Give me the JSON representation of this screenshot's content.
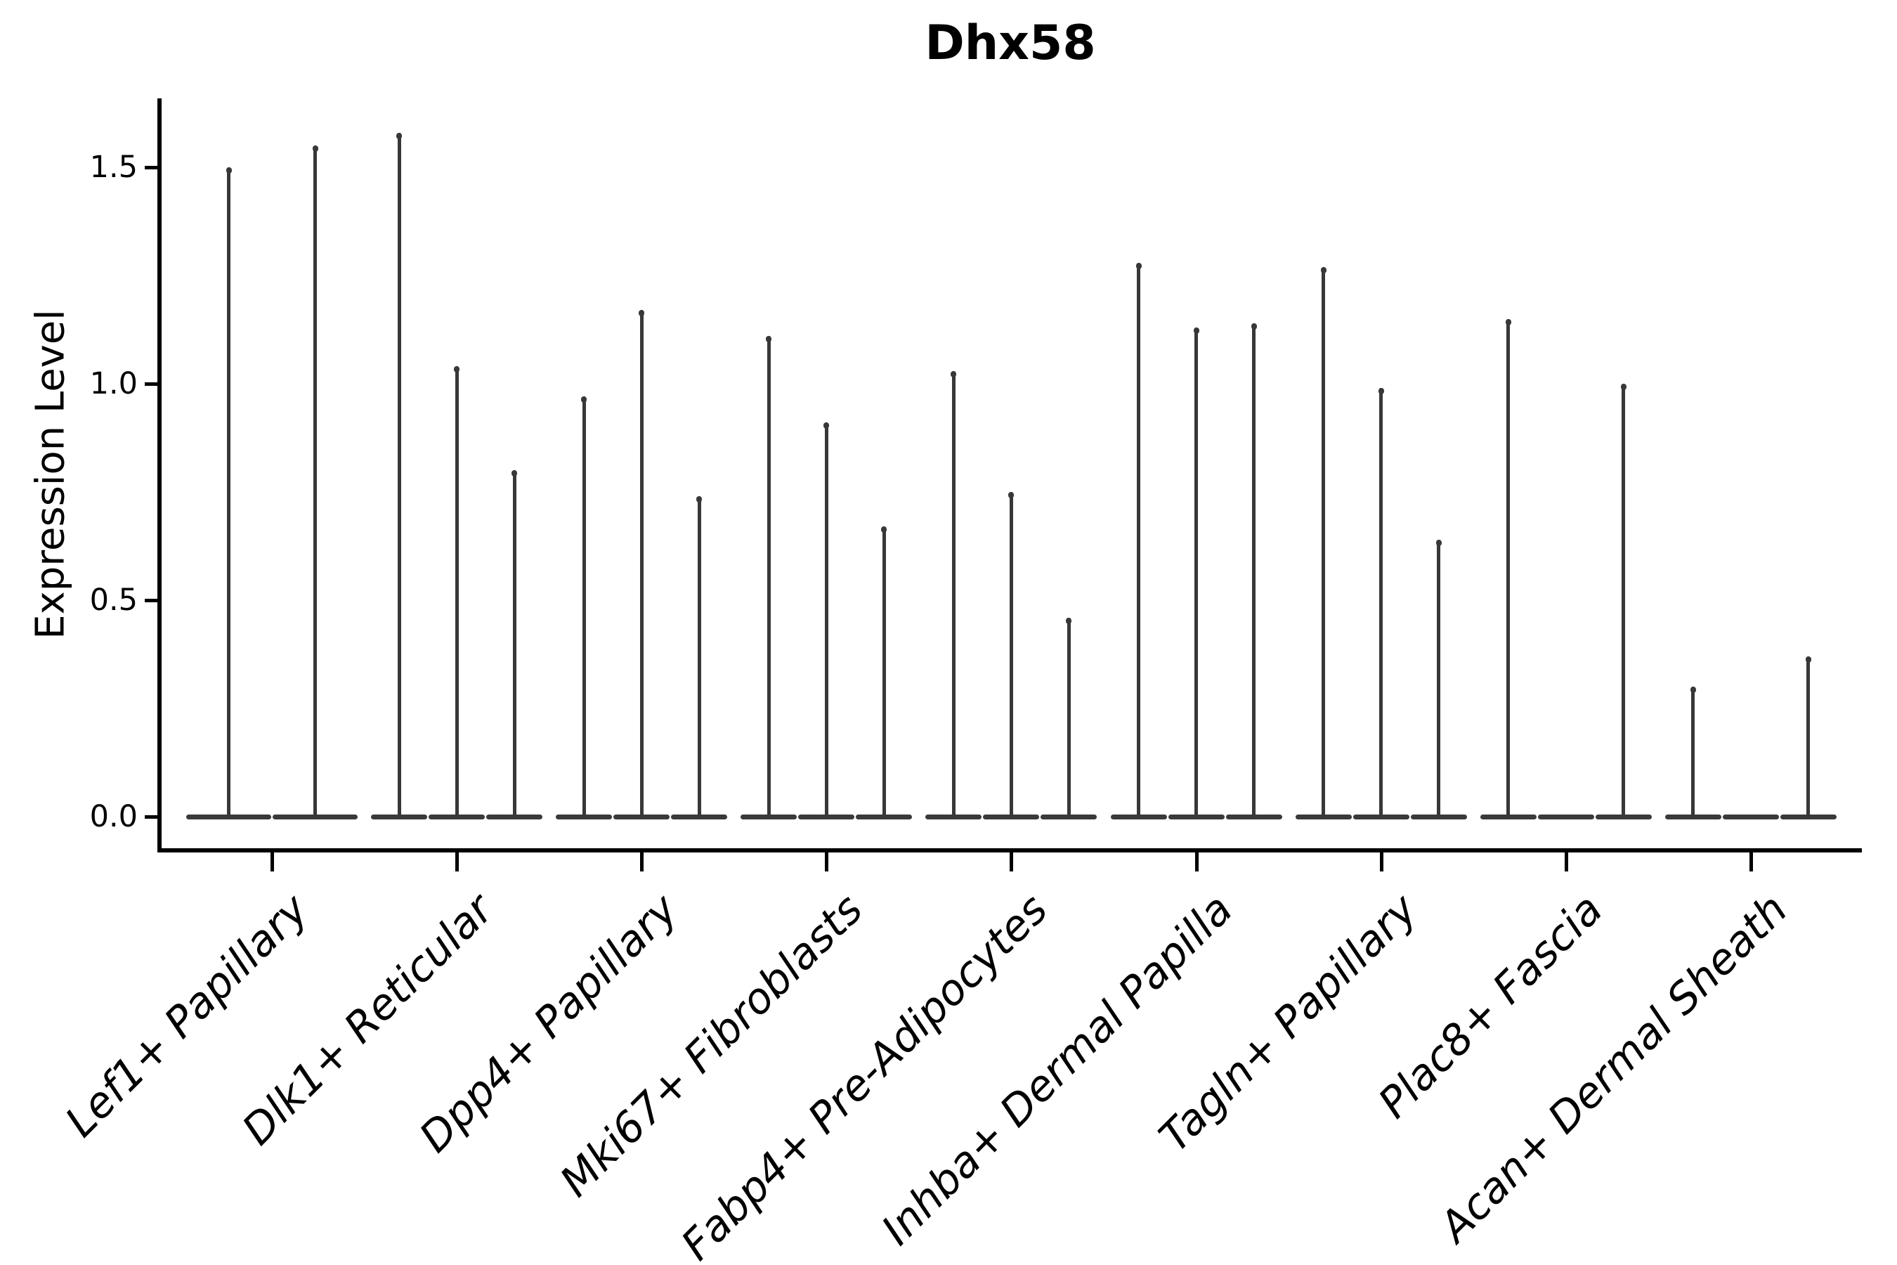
{
  "chart_data": {
    "type": "violin",
    "title": "Dhx58",
    "xlabel": "",
    "ylabel": "Expression Level",
    "ylim": [
      -0.07,
      1.66
    ],
    "y_ticks": [
      "0.0",
      "0.5",
      "1.0",
      "1.5"
    ],
    "y_tick_values": [
      0.0,
      0.5,
      1.0,
      1.5
    ],
    "grid": false,
    "legend": "none",
    "categories": [
      "Lef1+ Papillary",
      "Dlk1+ Reticular",
      "Dpp4+ Papillary",
      "Mki67+ Fibroblasts",
      "Fabp4+ Pre-Adipocytes",
      "Inhba+ Dermal Papilla",
      "Tagln+ Papillary",
      "Plac8+ Fascia",
      "Acan+ Dermal Sheath"
    ],
    "groups": [
      {
        "category": "Lef1+ Papillary",
        "violin_max_expression": [
          1.5,
          1.55
        ]
      },
      {
        "category": "Dlk1+ Reticular",
        "violin_max_expression": [
          1.58,
          1.04,
          0.8
        ]
      },
      {
        "category": "Dpp4+ Papillary",
        "violin_max_expression": [
          0.97,
          1.17,
          0.74
        ]
      },
      {
        "category": "Mki67+ Fibroblasts",
        "violin_max_expression": [
          1.11,
          0.91,
          0.67
        ]
      },
      {
        "category": "Fabp4+ Pre-Adipocytes",
        "violin_max_expression": [
          1.03,
          0.75,
          0.46
        ]
      },
      {
        "category": "Inhba+ Dermal Papilla",
        "violin_max_expression": [
          1.28,
          1.13,
          1.14
        ]
      },
      {
        "category": "Tagln+ Papillary",
        "violin_max_expression": [
          1.27,
          0.99,
          0.64
        ]
      },
      {
        "category": "Plac8+ Fascia",
        "violin_max_expression": [
          1.15,
          0.0,
          1.0
        ]
      },
      {
        "category": "Acan+ Dermal Sheath",
        "violin_max_expression": [
          0.3,
          0.0,
          0.37
        ]
      }
    ],
    "colors": {
      "violin": "#383838",
      "axis": "#000000",
      "text": "#000000",
      "background": "#ffffff"
    }
  }
}
